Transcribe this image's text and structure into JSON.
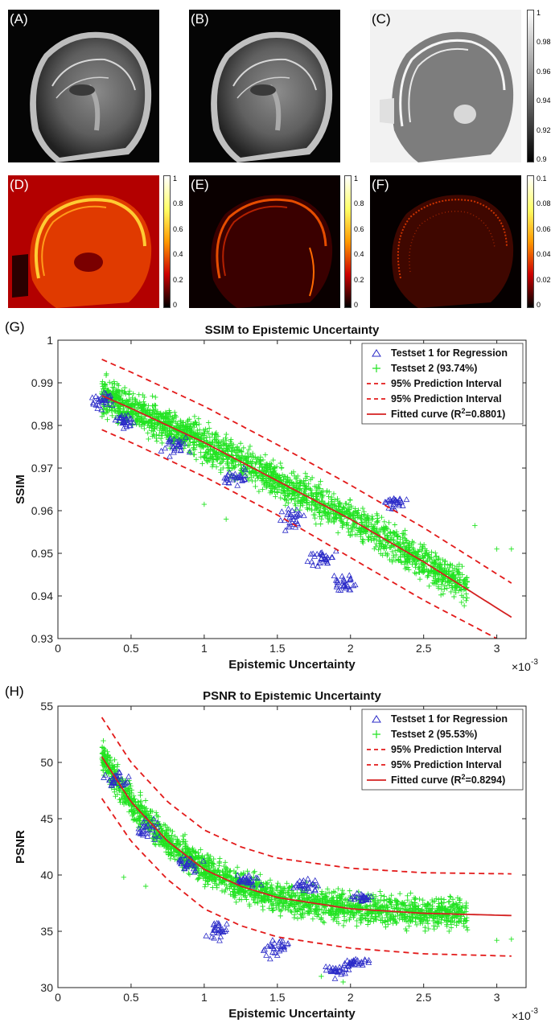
{
  "panels": [
    {
      "label": "(A)",
      "kind": "mri"
    },
    {
      "label": "(B)",
      "kind": "mri"
    },
    {
      "label": "(C)",
      "kind": "ssim_map",
      "colorbar_ticks": [
        "1",
        "0.98",
        "0.96",
        "0.94",
        "0.92",
        "0.9"
      ]
    },
    {
      "label": "(D)",
      "kind": "uncertainty_hot",
      "colorbar_ticks": [
        "1",
        "0.8",
        "0.6",
        "0.4",
        "0.2",
        "0"
      ]
    },
    {
      "label": "(E)",
      "kind": "uncertainty_hot",
      "colorbar_ticks": [
        "1",
        "0.8",
        "0.6",
        "0.4",
        "0.2",
        "0"
      ]
    },
    {
      "label": "(F)",
      "kind": "uncertainty_hot",
      "colorbar_ticks": [
        "0.1",
        "0.08",
        "0.06",
        "0.04",
        "0.02",
        "0"
      ]
    }
  ],
  "colors": {
    "testset1": "#2b2bc8",
    "testset2": "#22e322",
    "prediction_interval": "#e31a1a",
    "fitted_curve": "#d42020"
  },
  "chart_data": [
    {
      "panel_label": "(G)",
      "type": "scatter",
      "title": "SSIM to Epistemic Uncertainty",
      "xlabel": "Epistemic Uncertainty",
      "ylabel": "SSIM",
      "x_exponent_label": "×10",
      "x_exponent_power": "-3",
      "xlim": [
        0,
        3.2
      ],
      "ylim": [
        0.93,
        1.0
      ],
      "xticks": [
        0,
        0.5,
        1,
        1.5,
        2,
        2.5,
        3
      ],
      "xtick_labels": [
        "0",
        "0.5",
        "1",
        "1.5",
        "2",
        "2.5",
        "3"
      ],
      "yticks": [
        0.93,
        0.94,
        0.95,
        0.96,
        0.97,
        0.98,
        0.99,
        1.0
      ],
      "ytick_labels": [
        "0.93",
        "0.94",
        "0.95",
        "0.96",
        "0.97",
        "0.98",
        "0.99",
        "1"
      ],
      "grid": false,
      "legend_position": "top-right",
      "legend": [
        {
          "text": "Testset 1 for Regression",
          "marker": "triangle"
        },
        {
          "text": "Testset 2 (93.74%)",
          "marker": "plus"
        },
        {
          "text": "95% Prediction Interval",
          "marker": "dashed"
        },
        {
          "text": "95% Prediction Interval",
          "marker": "dashed"
        },
        {
          "text": "Fitted curve (R",
          "sup": "2",
          "tail": "=0.8801)",
          "marker": "solid"
        }
      ],
      "fitted_curve": {
        "x": [
          0.3,
          0.5,
          1.0,
          1.5,
          2.0,
          2.5,
          3.1
        ],
        "y": [
          0.987,
          0.984,
          0.976,
          0.967,
          0.958,
          0.948,
          0.935
        ]
      },
      "upper_interval": {
        "x": [
          0.3,
          0.5,
          1.0,
          1.5,
          2.0,
          2.5,
          3.1
        ],
        "y": [
          0.9955,
          0.9925,
          0.9845,
          0.9755,
          0.966,
          0.956,
          0.943
        ]
      },
      "lower_interval": {
        "x": [
          0.3,
          0.5,
          1.0,
          1.5,
          2.0,
          2.5,
          3.0
        ],
        "y": [
          0.979,
          0.976,
          0.968,
          0.959,
          0.949,
          0.939,
          0.93
        ]
      },
      "testset1_region": [
        [
          0.3,
          0.986,
          0.003
        ],
        [
          0.45,
          0.981,
          0.002
        ],
        [
          0.8,
          0.975,
          0.003
        ],
        [
          1.2,
          0.968,
          0.003
        ],
        [
          1.6,
          0.958,
          0.004
        ],
        [
          1.8,
          0.949,
          0.003
        ],
        [
          1.95,
          0.943,
          0.003
        ],
        [
          2.3,
          0.962,
          0.002
        ]
      ],
      "testset2_region": {
        "x_start": 0.3,
        "x_end": 2.8,
        "spread": 0.005,
        "outliers": [
          [
            1.0,
            0.9615
          ],
          [
            1.15,
            0.958
          ],
          [
            2.85,
            0.9565
          ],
          [
            3.0,
            0.951
          ],
          [
            3.1,
            0.951
          ]
        ]
      }
    },
    {
      "panel_label": "(H)",
      "type": "scatter",
      "title": "PSNR to Epistemic Uncertainty",
      "xlabel": "Epistemic Uncertainty",
      "ylabel": "PSNR",
      "x_exponent_label": "×10",
      "x_exponent_power": "-3",
      "xlim": [
        0,
        3.2
      ],
      "ylim": [
        30,
        55
      ],
      "xticks": [
        0,
        0.5,
        1,
        1.5,
        2,
        2.5,
        3
      ],
      "xtick_labels": [
        "0",
        "0.5",
        "1",
        "1.5",
        "2",
        "2.5",
        "3"
      ],
      "yticks": [
        30,
        35,
        40,
        45,
        50,
        55
      ],
      "ytick_labels": [
        "30",
        "35",
        "40",
        "45",
        "50",
        "55"
      ],
      "grid": false,
      "legend_position": "top-right",
      "legend": [
        {
          "text": "Testset 1 for Regression",
          "marker": "triangle"
        },
        {
          "text": "Testset 2 (95.53%)",
          "marker": "plus"
        },
        {
          "text": "95% Prediction Interval",
          "marker": "dashed"
        },
        {
          "text": "95% Prediction Interval",
          "marker": "dashed"
        },
        {
          "text": "Fitted curve (R",
          "sup": "2",
          "tail": "=0.8294)",
          "marker": "solid"
        }
      ],
      "fitted_curve": {
        "x": [
          0.3,
          0.5,
          0.75,
          1.0,
          1.25,
          1.5,
          2.0,
          2.5,
          3.1
        ],
        "y": [
          50.5,
          46.5,
          43.0,
          40.5,
          39.0,
          38.0,
          37.0,
          36.6,
          36.4
        ]
      },
      "upper_interval": {
        "x": [
          0.3,
          0.5,
          0.75,
          1.0,
          1.25,
          1.5,
          2.0,
          2.5,
          3.1
        ],
        "y": [
          54.0,
          50.0,
          46.5,
          44.0,
          42.5,
          41.5,
          40.6,
          40.2,
          40.1
        ]
      },
      "lower_interval": {
        "x": [
          0.3,
          0.5,
          0.75,
          1.0,
          1.25,
          1.5,
          2.0,
          2.5,
          3.1
        ],
        "y": [
          46.8,
          43.0,
          39.6,
          37.0,
          35.5,
          34.5,
          33.5,
          33.0,
          32.8
        ]
      },
      "testset1_region": [
        [
          0.4,
          48.5,
          1.0
        ],
        [
          0.6,
          44.0,
          1.2
        ],
        [
          0.9,
          41.0,
          1.0
        ],
        [
          1.3,
          39.5,
          0.8
        ],
        [
          1.7,
          39.0,
          0.8
        ],
        [
          2.1,
          38.0,
          0.6
        ],
        [
          1.1,
          35.0,
          1.2
        ],
        [
          1.5,
          33.5,
          1.2
        ],
        [
          1.9,
          31.5,
          1.0
        ],
        [
          2.05,
          32.2,
          0.4
        ]
      ],
      "testset2_region": {
        "x_start": 0.3,
        "x_end": 2.8,
        "spread": 1.6,
        "outliers": [
          [
            0.45,
            39.8
          ],
          [
            0.6,
            39.0
          ],
          [
            1.8,
            31.0
          ],
          [
            1.95,
            30.5
          ],
          [
            3.0,
            34.2
          ],
          [
            3.1,
            34.3
          ]
        ]
      }
    }
  ]
}
